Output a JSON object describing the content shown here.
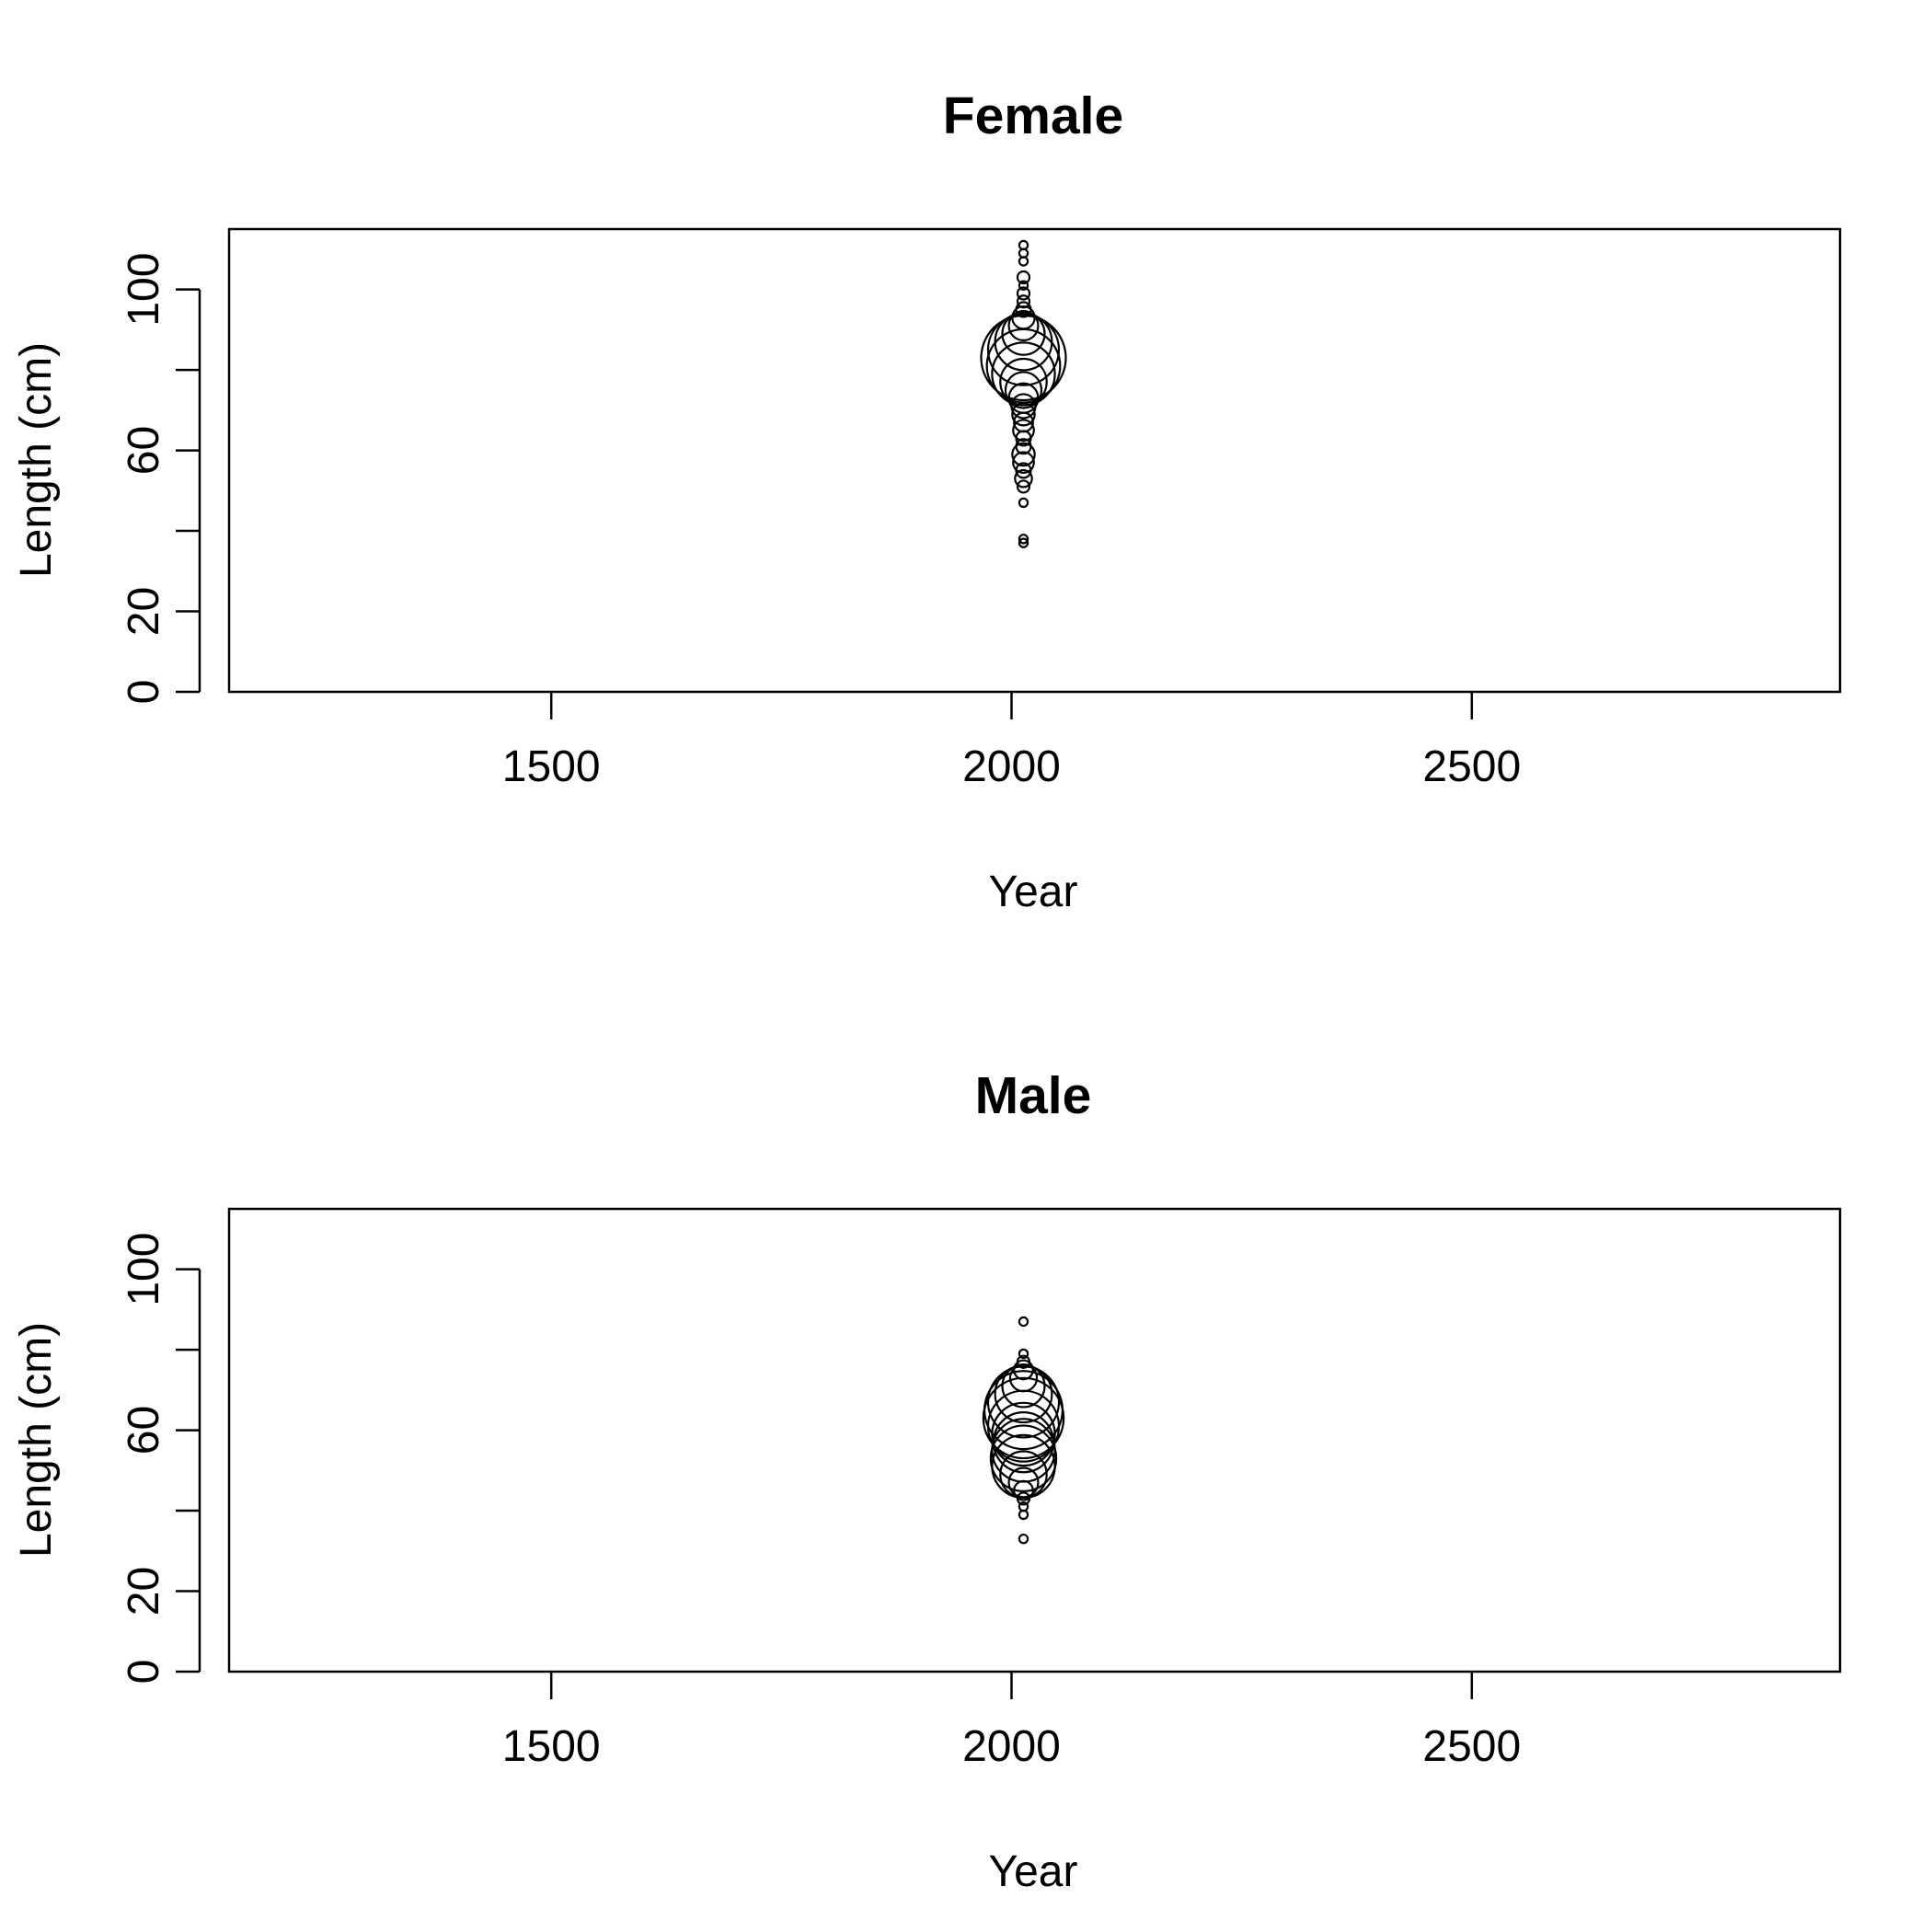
{
  "chart_data": [
    {
      "type": "scatter",
      "title": "Female",
      "xlabel": "Year",
      "ylabel": "Length (cm)",
      "xlim": [
        1150,
        2900
      ],
      "ylim": [
        0,
        115
      ],
      "x_ticks": [
        1500,
        2000,
        2500
      ],
      "y_ticks": [
        0,
        20,
        40,
        60,
        80,
        100
      ],
      "y_tick_labels": [
        "0",
        "20",
        "",
        "60",
        "",
        "100"
      ],
      "grid": false,
      "legend": "none",
      "marker": "open-circle, size proportional to proportion at length",
      "points": [
        {
          "x": 2013,
          "y": 37,
          "size": 0.01
        },
        {
          "x": 2013,
          "y": 38,
          "size": 0.01
        },
        {
          "x": 2013,
          "y": 47,
          "size": 0.01
        },
        {
          "x": 2013,
          "y": 51,
          "size": 0.02
        },
        {
          "x": 2013,
          "y": 53,
          "size": 0.04
        },
        {
          "x": 2013,
          "y": 55,
          "size": 0.03
        },
        {
          "x": 2013,
          "y": 57,
          "size": 0.06
        },
        {
          "x": 2013,
          "y": 59,
          "size": 0.07
        },
        {
          "x": 2013,
          "y": 61,
          "size": 0.03
        },
        {
          "x": 2013,
          "y": 63,
          "size": 0.03
        },
        {
          "x": 2013,
          "y": 65,
          "size": 0.06
        },
        {
          "x": 2013,
          "y": 67,
          "size": 0.05
        },
        {
          "x": 2013,
          "y": 69,
          "size": 0.07
        },
        {
          "x": 2013,
          "y": 71,
          "size": 0.08
        },
        {
          "x": 2013,
          "y": 73,
          "size": 0.12
        },
        {
          "x": 2013,
          "y": 75,
          "size": 0.18
        },
        {
          "x": 2013,
          "y": 77,
          "size": 0.3
        },
        {
          "x": 2013,
          "y": 79,
          "size": 0.55
        },
        {
          "x": 2013,
          "y": 81,
          "size": 0.75
        },
        {
          "x": 2013,
          "y": 83,
          "size": 1.0
        },
        {
          "x": 2013,
          "y": 85,
          "size": 0.7
        },
        {
          "x": 2013,
          "y": 87,
          "size": 0.45
        },
        {
          "x": 2013,
          "y": 89,
          "size": 0.25
        },
        {
          "x": 2013,
          "y": 91,
          "size": 0.12
        },
        {
          "x": 2013,
          "y": 93,
          "size": 0.07
        },
        {
          "x": 2013,
          "y": 95,
          "size": 0.03
        },
        {
          "x": 2013,
          "y": 97,
          "size": 0.02
        },
        {
          "x": 2013,
          "y": 99,
          "size": 0.02
        },
        {
          "x": 2013,
          "y": 101,
          "size": 0.01
        },
        {
          "x": 2013,
          "y": 103,
          "size": 0.02
        },
        {
          "x": 2013,
          "y": 107,
          "size": 0.01
        },
        {
          "x": 2013,
          "y": 109,
          "size": 0.01
        },
        {
          "x": 2013,
          "y": 111,
          "size": 0.01
        }
      ]
    },
    {
      "type": "scatter",
      "title": "Male",
      "xlabel": "Year",
      "ylabel": "Length (cm)",
      "xlim": [
        1150,
        2900
      ],
      "ylim": [
        0,
        115
      ],
      "x_ticks": [
        1500,
        2000,
        2500
      ],
      "y_ticks": [
        0,
        20,
        40,
        60,
        80,
        100
      ],
      "y_tick_labels": [
        "0",
        "20",
        "",
        "60",
        "",
        "100"
      ],
      "grid": false,
      "legend": "none",
      "marker": "open-circle, size proportional to proportion at length",
      "points": [
        {
          "x": 2013,
          "y": 33,
          "size": 0.01
        },
        {
          "x": 2013,
          "y": 39,
          "size": 0.01
        },
        {
          "x": 2013,
          "y": 41,
          "size": 0.01
        },
        {
          "x": 2013,
          "y": 43,
          "size": 0.02
        },
        {
          "x": 2013,
          "y": 45,
          "size": 0.05
        },
        {
          "x": 2013,
          "y": 47,
          "size": 0.12
        },
        {
          "x": 2013,
          "y": 49,
          "size": 0.3
        },
        {
          "x": 2013,
          "y": 51,
          "size": 0.55
        },
        {
          "x": 2013,
          "y": 53,
          "size": 0.6
        },
        {
          "x": 2013,
          "y": 55,
          "size": 0.55
        },
        {
          "x": 2013,
          "y": 57,
          "size": 0.5
        },
        {
          "x": 2013,
          "y": 59,
          "size": 0.55
        },
        {
          "x": 2013,
          "y": 61,
          "size": 0.7
        },
        {
          "x": 2013,
          "y": 63,
          "size": 0.9
        },
        {
          "x": 2013,
          "y": 65,
          "size": 0.85
        },
        {
          "x": 2013,
          "y": 67,
          "size": 0.7
        },
        {
          "x": 2013,
          "y": 69,
          "size": 0.45
        },
        {
          "x": 2013,
          "y": 71,
          "size": 0.25
        },
        {
          "x": 2013,
          "y": 73,
          "size": 0.1
        },
        {
          "x": 2013,
          "y": 75,
          "size": 0.05
        },
        {
          "x": 2013,
          "y": 77,
          "size": 0.02
        },
        {
          "x": 2013,
          "y": 79,
          "size": 0.01
        },
        {
          "x": 2013,
          "y": 87,
          "size": 0.01
        }
      ]
    }
  ]
}
